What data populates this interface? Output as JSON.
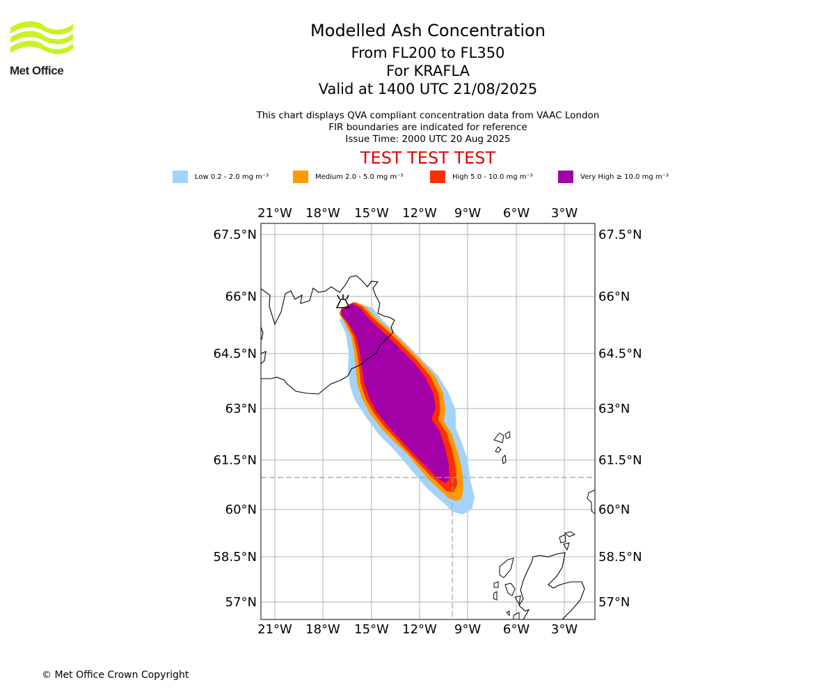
{
  "header": {
    "title": "Modelled Ash Concentration",
    "flight_levels": "From FL200 to FL350",
    "volcano_line": "For KRAFLA",
    "valid_time": "Valid at 1400 UTC 21/08/2025",
    "note_1": "This chart displays QVA compliant concentration data from VAAC London",
    "note_2": "FIR boundaries are indicated for reference",
    "issue_time": "Issue Time: 2000 UTC 20 Aug 2025",
    "watermark": "TEST TEST TEST"
  },
  "logo": {
    "text": "Met Office",
    "icon": "met-office-waves-logo"
  },
  "legend": [
    {
      "label": "Low 0.2 - 2.0 mg m⁻³",
      "color": "#a3d3fb"
    },
    {
      "label": "Medium 2.0 - 5.0 mg m⁻³",
      "color": "#ff9a00"
    },
    {
      "label": "High 5.0 - 10.0 mg m⁻³",
      "color": "#ff2d00"
    },
    {
      "label": "Very High ≥ 10.0 mg m⁻³",
      "color": "#a300a8"
    }
  ],
  "map": {
    "lon_ticks": [
      "21°W",
      "18°W",
      "15°W",
      "12°W",
      "9°W",
      "6°W",
      "3°W"
    ],
    "lat_ticks": [
      "67.5°N",
      "66°N",
      "64.5°N",
      "63°N",
      "61.5°N",
      "60°N",
      "58.5°N",
      "57°N"
    ],
    "volcano_symbol": "volcano-icon",
    "fir_boundary": "dashed grey",
    "grid": true
  },
  "footer": {
    "copyright": "© Met Office Crown Copyright"
  }
}
